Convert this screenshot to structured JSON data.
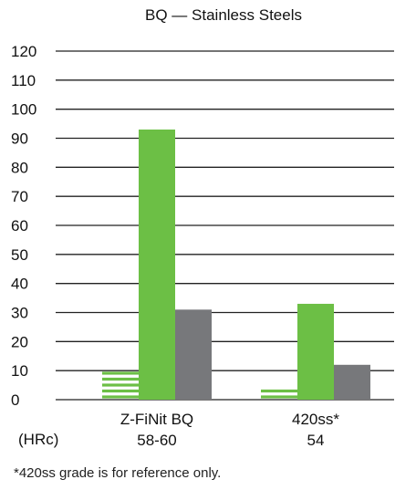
{
  "chart_data": {
    "type": "bar",
    "title": "BQ — Stainless Steels",
    "categories": [
      "Z-FiNit BQ",
      "420ss*"
    ],
    "category_sublabels": [
      "58-60",
      "54"
    ],
    "unit_label": "(HRc)",
    "series": [
      {
        "pattern": "hatched",
        "color": "#6cbf45",
        "values": [
          10,
          4
        ]
      },
      {
        "color": "#6cbf45",
        "values": [
          93,
          33
        ]
      },
      {
        "color": "#77787b",
        "values": [
          31,
          12
        ]
      }
    ],
    "ylim": [
      0,
      120
    ],
    "yticks": [
      0,
      10,
      20,
      30,
      40,
      50,
      60,
      70,
      80,
      90,
      100,
      110,
      120
    ],
    "grid": true,
    "legend": "none",
    "footnote": "*420ss grade is for reference only."
  }
}
